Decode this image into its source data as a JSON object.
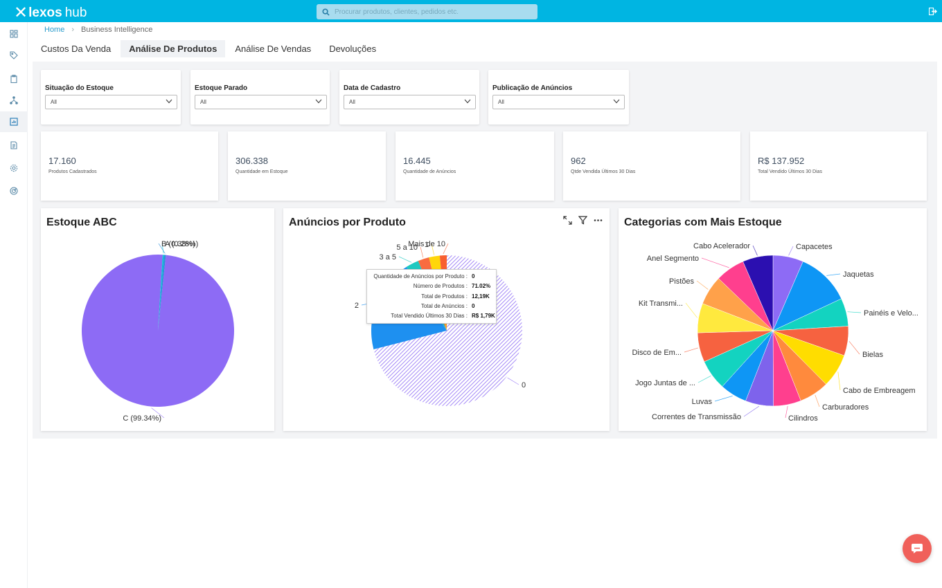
{
  "app": {
    "logo_text": "lexos",
    "logo_suffix": "hub"
  },
  "search": {
    "placeholder": "Procurar produtos, clientes, pedidos etc."
  },
  "breadcrumb": {
    "home": "Home",
    "current": "Business Intelligence"
  },
  "tabs": [
    {
      "label": "Custos Da Venda",
      "active": false
    },
    {
      "label": "Análise De Produtos",
      "active": true
    },
    {
      "label": "Análise De Vendas",
      "active": false
    },
    {
      "label": "Devoluções",
      "active": false
    }
  ],
  "filters": [
    {
      "label": "Situação do Estoque",
      "value": "All"
    },
    {
      "label": "Estoque Parado",
      "value": "All"
    },
    {
      "label": "Data de Cadastro",
      "value": "All"
    },
    {
      "label": "Publicação de Anúncios",
      "value": "All"
    }
  ],
  "kpis": [
    {
      "value": "17.160",
      "caption": "Produtos Cadastrados"
    },
    {
      "value": "306.338",
      "caption": "Quantidade em Estoque"
    },
    {
      "value": "16.445",
      "caption": "Quantidade de Anúncios"
    },
    {
      "value": "962",
      "caption": "Qtde Vendida Últimos 30 Dias"
    },
    {
      "value": "R$ 137.952",
      "caption": "Total Vendido Últimos 30 Dias"
    }
  ],
  "colors": {
    "topbar": "#00b5e2",
    "accent": "#2a9ccc",
    "chat": "#f0605a"
  },
  "tooltip": {
    "rows": [
      {
        "key": "Quantidade de Anúncios por Produto :",
        "value": "0"
      },
      {
        "key": "Número de Produtos :",
        "value": "71.02%"
      },
      {
        "key": "Total de Produtos :",
        "value": "12,19K"
      },
      {
        "key": "Total de Anúncios :",
        "value": "0"
      },
      {
        "key": "Total Vendido Últimos 30 Dias :",
        "value": "R$ 1,79K"
      }
    ]
  },
  "icons": {
    "sidebar": [
      "dashboard-icon",
      "tag-icon",
      "clipboard-icon",
      "network-icon",
      "chart-icon",
      "document-icon",
      "settings-icon",
      "radar-icon"
    ],
    "topbar": [
      "search-icon",
      "logout-icon"
    ]
  },
  "chart_data": [
    {
      "type": "pie",
      "title": "Estoque ABC",
      "slices": [
        {
          "label": "C (99.34%)",
          "value": 99.34,
          "color": "#8d6bf5"
        },
        {
          "label": "A (0.28%)",
          "value": 0.28,
          "color": "#00c3d6"
        },
        {
          "label": "B (0.38%)",
          "value": 0.38,
          "color": "#2d8fd9"
        }
      ]
    },
    {
      "type": "pie",
      "title": "Anúncios por Produto",
      "slices": [
        {
          "label": "0",
          "value": 71.02,
          "color": "#8d6bf5",
          "pattern": "hatch"
        },
        {
          "label": "2",
          "value": 20.0,
          "color": "#1e90f0"
        },
        {
          "label": "3 a 5",
          "value": 2.8,
          "color": "#1ec9c0"
        },
        {
          "label": "5 a 10",
          "value": 2.4,
          "color": "#f86c40"
        },
        {
          "label": "1",
          "value": 2.3,
          "color": "#ffd60a"
        },
        {
          "label": "Mais de 10",
          "value": 1.48,
          "color": "#f85f30"
        }
      ]
    },
    {
      "type": "pie",
      "title": "Categorias com Mais Estoque",
      "slices": [
        {
          "label": "Capacetes",
          "value": 6.5,
          "color": "#8d6bf5"
        },
        {
          "label": "Jaquetas",
          "value": 11.5,
          "color": "#0e96f5"
        },
        {
          "label": "Painéis e Velo...",
          "value": 6.0,
          "color": "#13d3c0"
        },
        {
          "label": "Bielas",
          "value": 6.3,
          "color": "#f66240"
        },
        {
          "label": "Cabo de Embreagem",
          "value": 7.2,
          "color": "#ffdd00"
        },
        {
          "label": "Carburadores",
          "value": 6.4,
          "color": "#ff8a3d"
        },
        {
          "label": "Cilindros",
          "value": 5.9,
          "color": "#ff3f8e"
        },
        {
          "label": "Correntes de Transmissão",
          "value": 6.0,
          "color": "#7e63ec"
        },
        {
          "label": "Luvas",
          "value": 5.8,
          "color": "#0e96f5"
        },
        {
          "label": "Jogo Juntas de ...",
          "value": 6.5,
          "color": "#13d3c0"
        },
        {
          "label": "Disco de Em...",
          "value": 6.3,
          "color": "#f66240"
        },
        {
          "label": "Kit Transmi...",
          "value": 6.3,
          "color": "#ffe93e"
        },
        {
          "label": "Pistões",
          "value": 6.3,
          "color": "#ffa14a"
        },
        {
          "label": "Anel Segmento",
          "value": 6.3,
          "color": "#ff3f8e"
        },
        {
          "label": "Cabo Acelerador",
          "value": 6.5,
          "color": "#2b0fb0"
        }
      ]
    }
  ]
}
